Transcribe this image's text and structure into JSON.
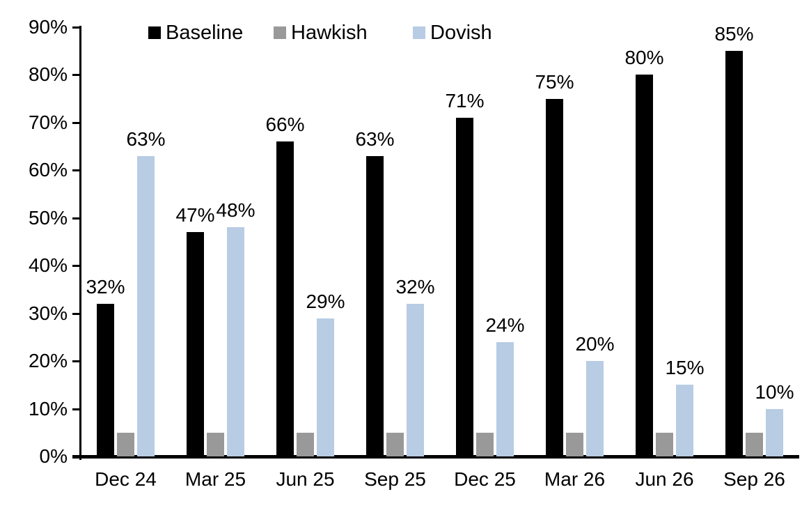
{
  "chart_data": {
    "type": "bar",
    "title": "",
    "categories": [
      "Dec 24",
      "Mar 25",
      "Jun 25",
      "Sep 25",
      "Dec 25",
      "Mar 26",
      "Jun 26",
      "Sep 26"
    ],
    "series": [
      {
        "name": "Baseline",
        "color": "#000000",
        "values": [
          32,
          47,
          66,
          63,
          71,
          75,
          80,
          85
        ],
        "value_labels": [
          "32%",
          "47%",
          "66%",
          "63%",
          "71%",
          "75%",
          "80%",
          "85%"
        ]
      },
      {
        "name": "Hawkish",
        "color": "#999999",
        "values": [
          5,
          5,
          5,
          5,
          5,
          5,
          5,
          5
        ],
        "value_labels": [
          "",
          "",
          "",
          "",
          "",
          "",
          "",
          ""
        ]
      },
      {
        "name": "Dovish",
        "color": "#b8cce4",
        "values": [
          63,
          48,
          29,
          32,
          24,
          20,
          15,
          10
        ],
        "value_labels": [
          "63%",
          "48%",
          "29%",
          "32%",
          "24%",
          "20%",
          "15%",
          "10%"
        ]
      }
    ],
    "y_axis": {
      "min": 0,
      "max": 90,
      "step": 10,
      "tick_labels": [
        "0%",
        "10%",
        "20%",
        "30%",
        "40%",
        "50%",
        "60%",
        "70%",
        "80%",
        "90%"
      ]
    },
    "legend": {
      "position": "top",
      "items": [
        "Baseline",
        "Hawkish",
        "Dovish"
      ]
    },
    "grid": false,
    "background": "#ffffff"
  }
}
